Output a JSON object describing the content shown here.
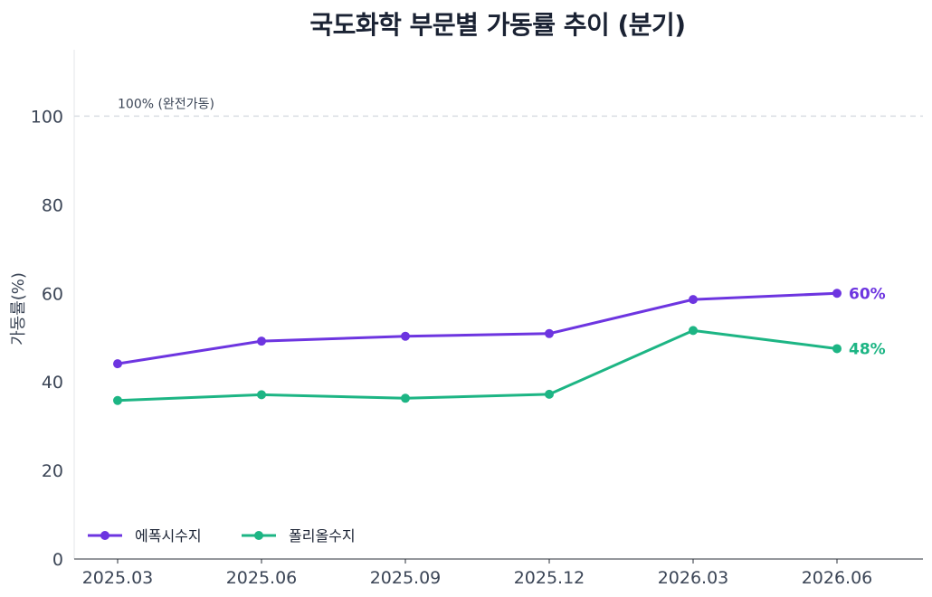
{
  "chart_data": {
    "type": "line",
    "title": "국도화학 부문별 가동률 추이 (분기)",
    "xlabel": "",
    "ylabel": "가동률(%)",
    "categories": [
      "2025.03",
      "2025.06",
      "2025.09",
      "2025.12",
      "2026.03",
      "2026.06"
    ],
    "ylim": [
      0,
      115
    ],
    "yticks": [
      0,
      20,
      40,
      60,
      80,
      100
    ],
    "grid": false,
    "legend_position": "bottom-left",
    "reference_line": {
      "value": 100,
      "label": "100% (완전가동)",
      "color": "#d9dde3",
      "style": "dashed"
    },
    "series": [
      {
        "name": "에폭시수지",
        "color": "#6d35e0",
        "values": [
          44.1,
          49.2,
          50.3,
          50.9,
          58.6,
          60.0
        ],
        "end_label": "60%"
      },
      {
        "name": "폴리올수지",
        "color": "#1db584",
        "values": [
          35.8,
          37.1,
          36.3,
          37.2,
          51.6,
          47.5
        ],
        "end_label": "48%"
      }
    ]
  }
}
